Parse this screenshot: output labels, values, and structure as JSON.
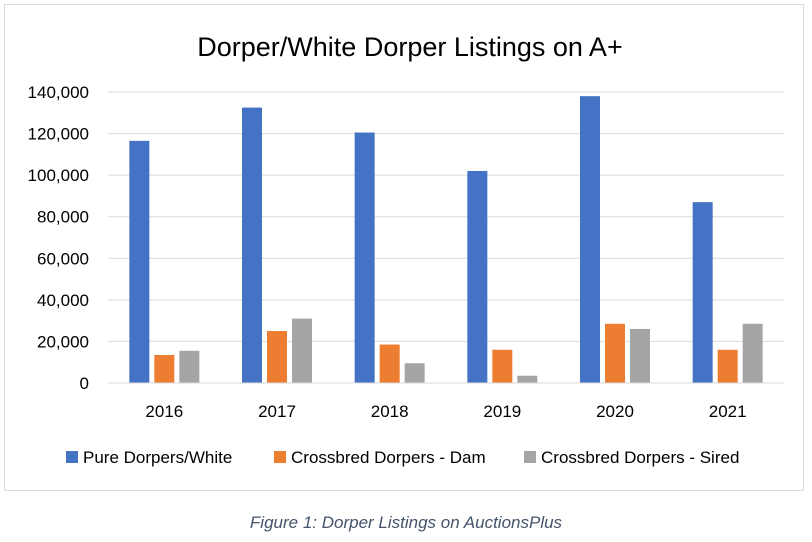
{
  "chart_data": {
    "type": "bar",
    "title": "Dorper/White Dorper Listings on A+",
    "categories": [
      "2016",
      "2017",
      "2018",
      "2019",
      "2020",
      "2021"
    ],
    "series": [
      {
        "name": "Pure Dorpers/White",
        "color": "#4472c4",
        "values": [
          116500,
          132500,
          120500,
          102000,
          138000,
          87000
        ]
      },
      {
        "name": "Crossbred Dorpers - Dam",
        "color": "#ed7d31",
        "values": [
          13500,
          25000,
          18500,
          16000,
          28500,
          16000
        ]
      },
      {
        "name": "Crossbred Dorpers - Sired",
        "color": "#a5a5a5",
        "values": [
          15500,
          31000,
          9500,
          3500,
          26000,
          28500
        ]
      }
    ],
    "ylim": [
      0,
      140000
    ],
    "yticks": [
      {
        "value": 0,
        "label": "0"
      },
      {
        "value": 20000,
        "label": "20,000"
      },
      {
        "value": 40000,
        "label": "40,000"
      },
      {
        "value": 60000,
        "label": "60,000"
      },
      {
        "value": 80000,
        "label": "80,000"
      },
      {
        "value": 100000,
        "label": "100,000"
      },
      {
        "value": 120000,
        "label": "120,000"
      },
      {
        "value": 140000,
        "label": "140,000"
      }
    ],
    "grid": true,
    "gridline_color": "#d9d9d9",
    "legend_position": "bottom"
  },
  "caption": "Figure 1: Dorper Listings on AuctionsPlus"
}
